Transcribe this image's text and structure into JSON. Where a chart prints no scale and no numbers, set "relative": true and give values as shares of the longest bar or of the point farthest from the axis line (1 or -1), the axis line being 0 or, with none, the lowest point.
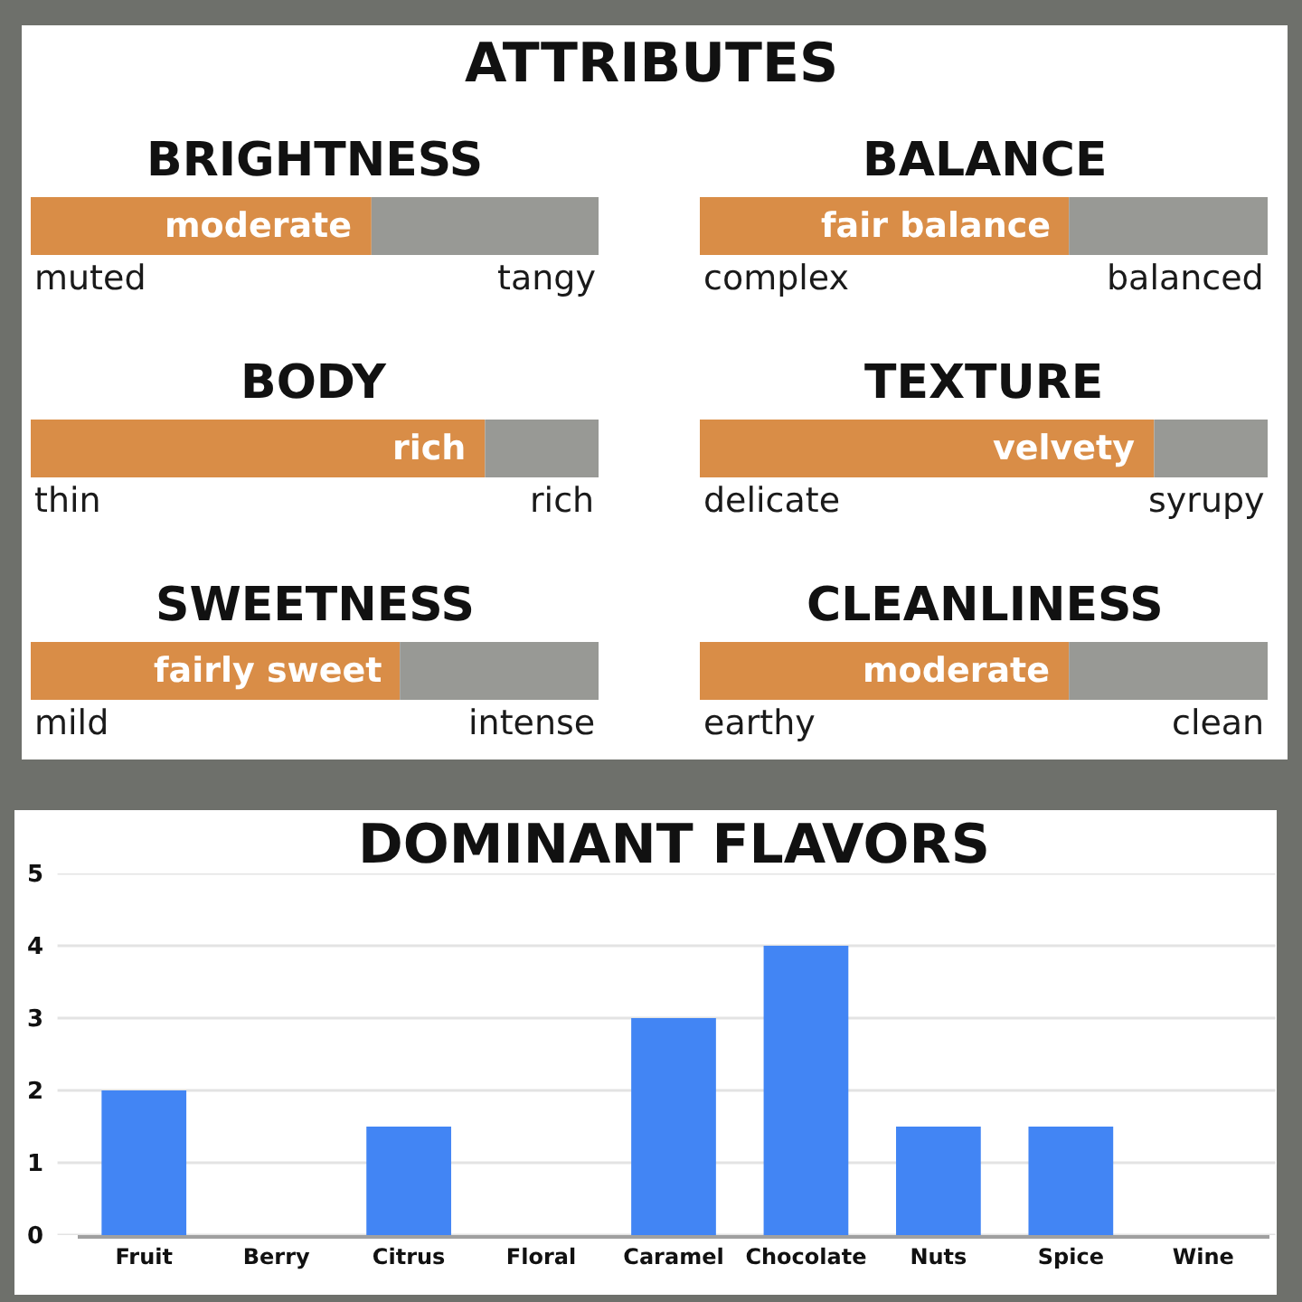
{
  "chart_data": [
    {
      "type": "other",
      "title": "ATTRIBUTES"
    },
    {
      "type": "bar",
      "title": "BRIGHTNESS",
      "orientation": "horizontal",
      "stacked": true,
      "relative": true,
      "categories": [
        null
      ],
      "series": [
        {
          "color": "#d98d47",
          "values": [
            0.6
          ]
        },
        {
          "color": "#989995",
          "values": [
            0.4
          ]
        }
      ],
      "annotations": [
        {
          "text": "moderate",
          "x": 0.6
        },
        "muted",
        "tangy"
      ]
    },
    {
      "type": "bar",
      "title": "BALANCE",
      "orientation": "horizontal",
      "stacked": true,
      "relative": true,
      "categories": [
        null
      ],
      "series": [
        {
          "color": "#d98d47",
          "values": [
            0.65
          ]
        },
        {
          "color": "#989995",
          "values": [
            0.35
          ]
        }
      ],
      "annotations": [
        {
          "text": "fair balance",
          "x": 0.65
        },
        "complex",
        "balanced"
      ]
    },
    {
      "type": "bar",
      "title": "BODY",
      "orientation": "horizontal",
      "stacked": true,
      "relative": true,
      "categories": [
        null
      ],
      "series": [
        {
          "color": "#d98d47",
          "values": [
            0.8
          ]
        },
        {
          "color": "#989995",
          "values": [
            0.2
          ]
        }
      ],
      "annotations": [
        {
          "text": "rich",
          "x": 0.8
        },
        "thin",
        "rich"
      ]
    },
    {
      "type": "bar",
      "title": "TEXTURE",
      "orientation": "horizontal",
      "stacked": true,
      "relative": true,
      "categories": [
        null
      ],
      "series": [
        {
          "color": "#d98d47",
          "values": [
            0.8
          ]
        },
        {
          "color": "#989995",
          "values": [
            0.2
          ]
        }
      ],
      "annotations": [
        {
          "text": "velvety",
          "x": 0.8
        },
        "delicate",
        "syrupy"
      ]
    },
    {
      "type": "bar",
      "title": "SWEETNESS",
      "orientation": "horizontal",
      "stacked": true,
      "relative": true,
      "categories": [
        null
      ],
      "series": [
        {
          "color": "#d98d47",
          "values": [
            0.65
          ]
        },
        {
          "color": "#989995",
          "values": [
            0.35
          ]
        }
      ],
      "annotations": [
        {
          "text": "fairly sweet",
          "x": 0.65
        },
        "mild",
        "intense"
      ]
    },
    {
      "type": "bar",
      "title": "CLEANLINESS",
      "orientation": "horizontal",
      "stacked": true,
      "relative": true,
      "categories": [
        null
      ],
      "series": [
        {
          "color": "#d98d47",
          "values": [
            0.65
          ]
        },
        {
          "color": "#989995",
          "values": [
            0.35
          ]
        }
      ],
      "annotations": [
        {
          "text": "moderate",
          "x": 0.65
        },
        "earthy",
        "clean"
      ]
    },
    {
      "type": "bar",
      "title": "DOMINANT FLAVORS",
      "categories": [
        "Fruit",
        "Berry",
        "Citrus",
        "Floral",
        "Caramel",
        "Chocolate",
        "Nuts",
        "Spice",
        "Wine"
      ],
      "values": [
        2,
        0,
        1.5,
        0,
        3,
        4,
        1.5,
        1.5,
        0
      ],
      "color": "#4285f4",
      "ylim": [
        0,
        5
      ],
      "yticks": [
        0,
        1,
        2,
        3,
        4,
        5
      ],
      "grid": "y"
    }
  ]
}
